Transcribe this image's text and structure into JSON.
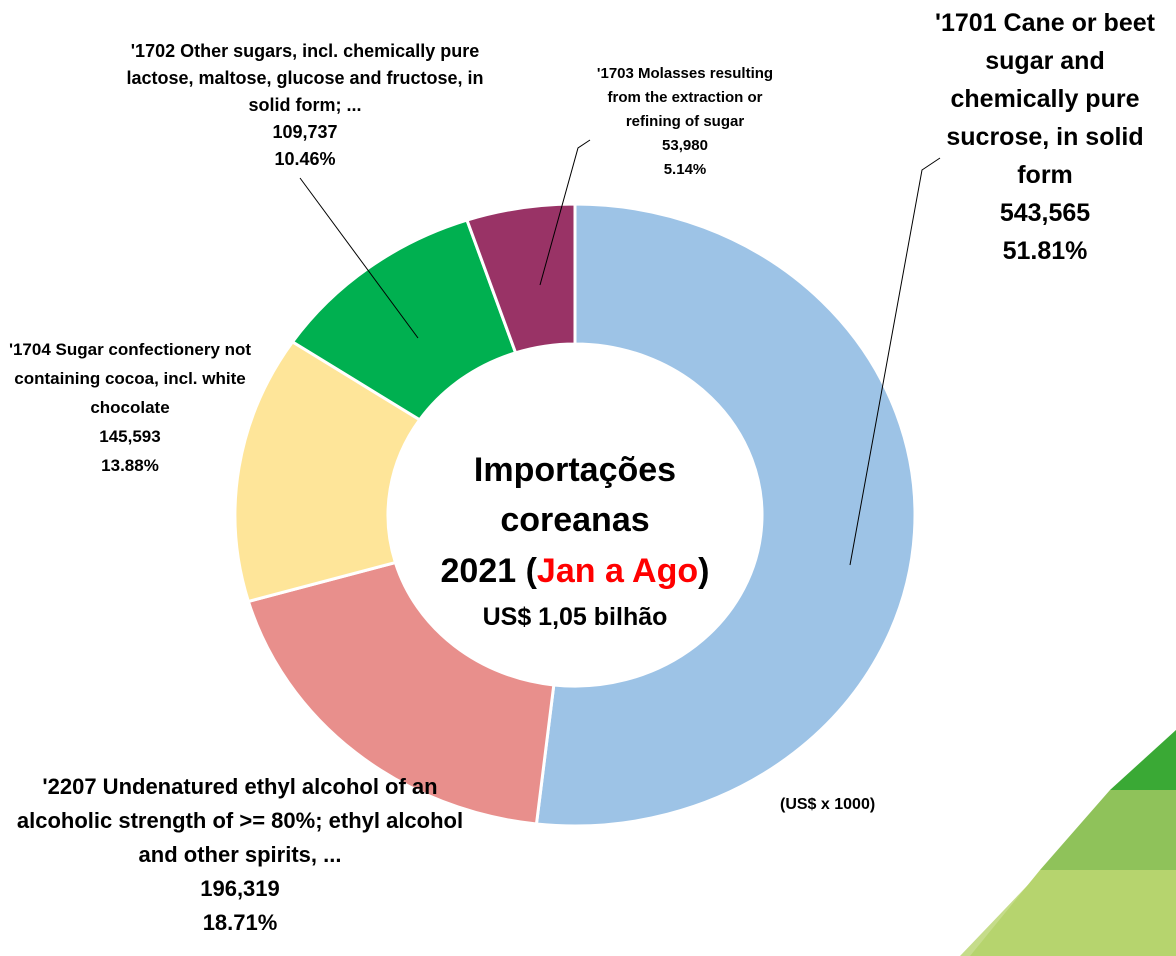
{
  "chart_data": {
    "type": "donut",
    "categories": [
      "'1701 Cane or beet sugar and chemically pure sucrose, in solid form",
      "'2207 Undenatured ethyl alcohol of an alcoholic strength of >= 80%; ethyl alcohol and other spirits, ...",
      "'1704 Sugar confectionery not containing cocoa, incl. white chocolate",
      "'1702 Other sugars, incl. chemically pure lactose, maltose, glucose and fructose, in solid form; ...",
      "'1703 Molasses resulting from the extraction or refining of sugar"
    ],
    "values": [
      543565,
      196319,
      145593,
      109737,
      53980
    ],
    "value_labels": [
      "543,565",
      "196,319",
      "145,593",
      "109,737",
      "53,980"
    ],
    "percentages": [
      51.81,
      18.71,
      13.88,
      10.46,
      5.14
    ],
    "percentage_labels": [
      "51.81%",
      "18.71%",
      "13.88%",
      "10.46%",
      "5.14%"
    ],
    "colors": [
      "#9dc3e6",
      "#e88f8c",
      "#fee599",
      "#00b050",
      "#993366"
    ],
    "center_title": "Importações coreanas",
    "center_prefix": "2021 (",
    "center_highlight": "Jan a Ago",
    "center_suffix": ")",
    "center_total": "US$ 1,05 bilhão",
    "unit_note": "(US$ x 1000)"
  }
}
